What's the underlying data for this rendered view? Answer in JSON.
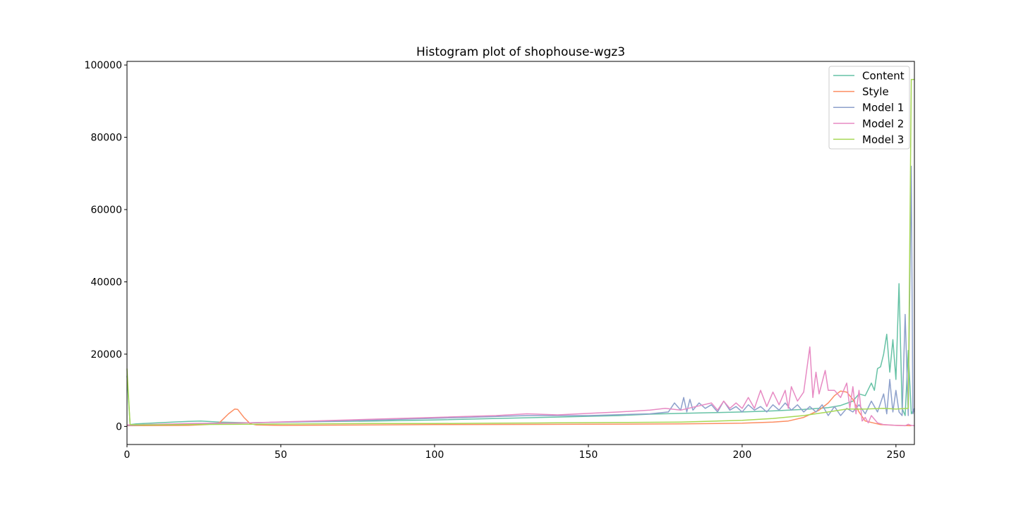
{
  "chart_data": {
    "type": "line",
    "title": "Histogram plot of shophouse-wgz3",
    "xlabel": "",
    "ylabel": "",
    "xlim": [
      0,
      256
    ],
    "ylim": [
      -5000,
      101000
    ],
    "xticks": [
      0,
      50,
      100,
      150,
      200,
      250
    ],
    "yticks": [
      0,
      20000,
      40000,
      60000,
      80000,
      100000
    ],
    "grid": false,
    "legend_position": "upper right",
    "series": [
      {
        "name": "Content",
        "color": "#66c2a5",
        "points": [
          [
            0,
            14000
          ],
          [
            1,
            500
          ],
          [
            3,
            700
          ],
          [
            10,
            1000
          ],
          [
            20,
            1400
          ],
          [
            24,
            1500
          ],
          [
            30,
            1200
          ],
          [
            40,
            1000
          ],
          [
            60,
            1300
          ],
          [
            80,
            1500
          ],
          [
            100,
            1800
          ],
          [
            120,
            2200
          ],
          [
            140,
            2600
          ],
          [
            160,
            3000
          ],
          [
            170,
            3400
          ],
          [
            180,
            3600
          ],
          [
            190,
            3800
          ],
          [
            200,
            4000
          ],
          [
            210,
            4300
          ],
          [
            220,
            4700
          ],
          [
            228,
            5200
          ],
          [
            232,
            5800
          ],
          [
            236,
            7000
          ],
          [
            238,
            9000
          ],
          [
            240,
            8500
          ],
          [
            242,
            12000
          ],
          [
            243,
            10000
          ],
          [
            244,
            16000
          ],
          [
            245,
            16500
          ],
          [
            246,
            20000
          ],
          [
            247,
            25500
          ],
          [
            248,
            15000
          ],
          [
            249,
            24000
          ],
          [
            250,
            13000
          ],
          [
            251,
            39500
          ],
          [
            252,
            5000
          ],
          [
            253,
            3000
          ],
          [
            254,
            21000
          ],
          [
            255,
            3500
          ],
          [
            256,
            5000
          ]
        ]
      },
      {
        "name": "Style",
        "color": "#fc8d62",
        "points": [
          [
            0,
            200
          ],
          [
            10,
            250
          ],
          [
            20,
            300
          ],
          [
            26,
            500
          ],
          [
            30,
            1000
          ],
          [
            33,
            3500
          ],
          [
            35,
            4800
          ],
          [
            36,
            4700
          ],
          [
            38,
            2500
          ],
          [
            40,
            800
          ],
          [
            42,
            400
          ],
          [
            50,
            300
          ],
          [
            80,
            400
          ],
          [
            100,
            500
          ],
          [
            150,
            600
          ],
          [
            180,
            700
          ],
          [
            200,
            900
          ],
          [
            210,
            1200
          ],
          [
            215,
            1500
          ],
          [
            220,
            2500
          ],
          [
            225,
            4500
          ],
          [
            228,
            6500
          ],
          [
            230,
            8500
          ],
          [
            232,
            9800
          ],
          [
            234,
            9500
          ],
          [
            236,
            7500
          ],
          [
            238,
            4000
          ],
          [
            240,
            1500
          ],
          [
            245,
            500
          ],
          [
            250,
            300
          ],
          [
            255,
            200
          ]
        ]
      },
      {
        "name": "Model 1",
        "color": "#8da0cb",
        "points": [
          [
            0,
            300
          ],
          [
            10,
            500
          ],
          [
            30,
            800
          ],
          [
            50,
            1200
          ],
          [
            70,
            1500
          ],
          [
            90,
            2000
          ],
          [
            110,
            2500
          ],
          [
            130,
            3000
          ],
          [
            150,
            3000
          ],
          [
            170,
            3500
          ],
          [
            176,
            4000
          ],
          [
            178,
            6500
          ],
          [
            180,
            4500
          ],
          [
            181,
            8000
          ],
          [
            182,
            4000
          ],
          [
            183,
            7500
          ],
          [
            184,
            4500
          ],
          [
            186,
            6500
          ],
          [
            188,
            5000
          ],
          [
            190,
            6000
          ],
          [
            192,
            4000
          ],
          [
            194,
            7000
          ],
          [
            196,
            4500
          ],
          [
            198,
            5500
          ],
          [
            200,
            4000
          ],
          [
            202,
            6000
          ],
          [
            204,
            4500
          ],
          [
            206,
            5500
          ],
          [
            208,
            4000
          ],
          [
            210,
            6000
          ],
          [
            212,
            4500
          ],
          [
            214,
            6500
          ],
          [
            216,
            4500
          ],
          [
            218,
            6000
          ],
          [
            220,
            4000
          ],
          [
            222,
            5500
          ],
          [
            224,
            4000
          ],
          [
            226,
            6000
          ],
          [
            228,
            3000
          ],
          [
            230,
            5500
          ],
          [
            232,
            3000
          ],
          [
            234,
            5000
          ],
          [
            236,
            4000
          ],
          [
            238,
            6000
          ],
          [
            240,
            3500
          ],
          [
            242,
            7000
          ],
          [
            244,
            4000
          ],
          [
            246,
            9000
          ],
          [
            247,
            3500
          ],
          [
            248,
            13000
          ],
          [
            249,
            4000
          ],
          [
            250,
            10000
          ],
          [
            251,
            4000
          ],
          [
            252,
            3000
          ],
          [
            253,
            31000
          ],
          [
            254,
            3000
          ],
          [
            255,
            72000
          ],
          [
            255.5,
            3500
          ],
          [
            256,
            5000
          ]
        ]
      },
      {
        "name": "Model 2",
        "color": "#e78ac3",
        "points": [
          [
            0,
            400
          ],
          [
            20,
            800
          ],
          [
            40,
            1000
          ],
          [
            60,
            1500
          ],
          [
            80,
            2000
          ],
          [
            100,
            2500
          ],
          [
            120,
            3000
          ],
          [
            130,
            3500
          ],
          [
            140,
            3200
          ],
          [
            150,
            3600
          ],
          [
            160,
            4000
          ],
          [
            170,
            4500
          ],
          [
            175,
            5000
          ],
          [
            180,
            4500
          ],
          [
            185,
            5500
          ],
          [
            190,
            6500
          ],
          [
            192,
            4500
          ],
          [
            194,
            7000
          ],
          [
            196,
            5000
          ],
          [
            198,
            6500
          ],
          [
            200,
            5000
          ],
          [
            202,
            8000
          ],
          [
            204,
            5000
          ],
          [
            206,
            10000
          ],
          [
            208,
            5500
          ],
          [
            210,
            9500
          ],
          [
            212,
            6000
          ],
          [
            214,
            10000
          ],
          [
            215,
            5000
          ],
          [
            216,
            11000
          ],
          [
            218,
            7000
          ],
          [
            220,
            9500
          ],
          [
            222,
            22000
          ],
          [
            223,
            8000
          ],
          [
            224,
            15000
          ],
          [
            225,
            9000
          ],
          [
            227,
            15500
          ],
          [
            228,
            10000
          ],
          [
            230,
            10000
          ],
          [
            232,
            8000
          ],
          [
            234,
            12000
          ],
          [
            235,
            5000
          ],
          [
            236,
            11000
          ],
          [
            237,
            3500
          ],
          [
            238,
            10000
          ],
          [
            239,
            1500
          ],
          [
            240,
            2500
          ],
          [
            241,
            1000
          ],
          [
            242,
            3000
          ],
          [
            244,
            1000
          ],
          [
            246,
            500
          ],
          [
            250,
            300
          ],
          [
            253,
            200
          ],
          [
            254,
            600
          ],
          [
            255,
            300
          ],
          [
            256,
            200
          ]
        ]
      },
      {
        "name": "Model 3",
        "color": "#a6d854",
        "points": [
          [
            0,
            16000
          ],
          [
            1,
            500
          ],
          [
            5,
            400
          ],
          [
            20,
            500
          ],
          [
            40,
            600
          ],
          [
            60,
            700
          ],
          [
            80,
            800
          ],
          [
            100,
            800
          ],
          [
            120,
            900
          ],
          [
            140,
            1000
          ],
          [
            160,
            1100
          ],
          [
            180,
            1200
          ],
          [
            200,
            1700
          ],
          [
            210,
            2200
          ],
          [
            220,
            3000
          ],
          [
            228,
            4000
          ],
          [
            234,
            4800
          ],
          [
            240,
            4800
          ],
          [
            246,
            5000
          ],
          [
            250,
            4800
          ],
          [
            254,
            5000
          ],
          [
            255,
            96000
          ],
          [
            256,
            96000
          ]
        ]
      }
    ]
  }
}
